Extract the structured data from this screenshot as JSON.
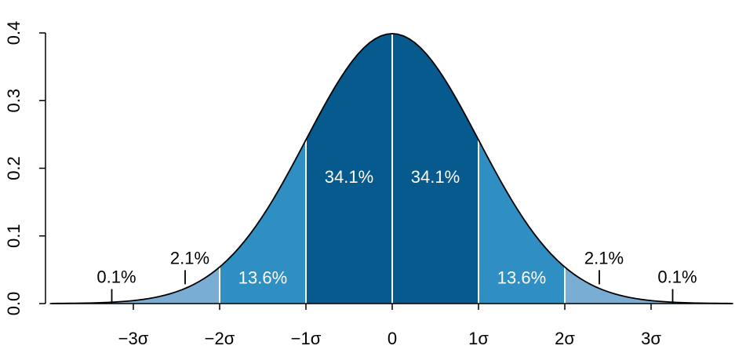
{
  "chart_data": {
    "type": "area",
    "title": "",
    "xlabel": "",
    "ylabel": "",
    "xlim": [
      -3.95,
      3.95
    ],
    "ylim": [
      0,
      0.4
    ],
    "x_ticks": [
      {
        "value": -3,
        "label": "−3σ"
      },
      {
        "value": -2,
        "label": "−2σ"
      },
      {
        "value": -1,
        "label": "−1σ"
      },
      {
        "value": 0,
        "label": "0"
      },
      {
        "value": 1,
        "label": "1σ"
      },
      {
        "value": 2,
        "label": "2σ"
      },
      {
        "value": 3,
        "label": "3σ"
      }
    ],
    "y_ticks": [
      {
        "value": 0.0,
        "label": "0.0"
      },
      {
        "value": 0.1,
        "label": "0.1"
      },
      {
        "value": 0.2,
        "label": "0.2"
      },
      {
        "value": 0.3,
        "label": "0.3"
      },
      {
        "value": 0.4,
        "label": "0.4"
      }
    ],
    "curve": {
      "distribution": "normal",
      "mean": 0,
      "sd": 1
    },
    "bands": [
      {
        "from": -3.95,
        "to": -2,
        "color": "#7aadd3"
      },
      {
        "from": -2,
        "to": -1,
        "color": "#2f8ec2"
      },
      {
        "from": -1,
        "to": 1,
        "color": "#065a8e"
      },
      {
        "from": 1,
        "to": 2,
        "color": "#2f8ec2"
      },
      {
        "from": 2,
        "to": 3.95,
        "color": "#7aadd3"
      }
    ],
    "divider_lines": [
      -2,
      -1,
      0,
      1,
      2
    ],
    "region_labels": [
      {
        "x": -1.5,
        "y": 0.039,
        "text": "13.6%"
      },
      {
        "x": -0.5,
        "y": 0.188,
        "text": "34.1%"
      },
      {
        "x": 0.5,
        "y": 0.188,
        "text": "34.1%"
      },
      {
        "x": 1.5,
        "y": 0.039,
        "text": "13.6%"
      }
    ],
    "tail_labels": [
      {
        "x": -3.25,
        "y": 0.04,
        "text": "0.1%",
        "tick_x": -3.25
      },
      {
        "x": -2.4,
        "y": 0.068,
        "text": "2.1%",
        "tick_x": -2.4
      },
      {
        "x": 2.4,
        "y": 0.068,
        "text": "2.1%",
        "tick_x": 2.4
      },
      {
        "x": 3.25,
        "y": 0.04,
        "text": "0.1%",
        "tick_x": 3.25
      }
    ]
  }
}
